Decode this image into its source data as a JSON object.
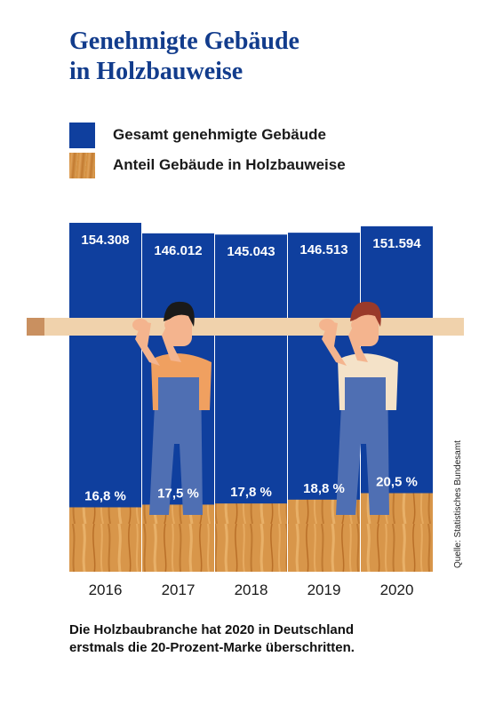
{
  "title": {
    "line1": "Genehmigte Gebäude",
    "line2": "in Holzbauweise"
  },
  "legend": {
    "total_label": "Gesamt genehmigte Gebäude",
    "wood_label": "Anteil Gebäude in Holzbauweise"
  },
  "chart_data": {
    "type": "bar",
    "categories": [
      "2016",
      "2017",
      "2018",
      "2019",
      "2020"
    ],
    "series": [
      {
        "name": "Gesamt genehmigte Gebäude",
        "values": [
          154308,
          146012,
          145043,
          146513,
          151594
        ],
        "labels": [
          "154.308",
          "146.012",
          "145.043",
          "146.513",
          "151.594"
        ]
      },
      {
        "name": "Anteil Gebäude in Holzbauweise",
        "values": [
          16.8,
          17.5,
          17.8,
          18.8,
          20.5
        ],
        "labels": [
          "16,8 %",
          "17,5 %",
          "17,8 %",
          "18,8 %",
          "20,5 %"
        ]
      }
    ],
    "colors": {
      "total": "#0f3f9e",
      "wood": "#d8964a",
      "label": "#ffffff"
    }
  },
  "source": "Quelle: Statistisches Bundesamt",
  "caption": {
    "line1": "Die Holzbaubranche hat 2020 in Deutschland",
    "line2": "erstmals die 20-Prozent-Marke überschritten."
  }
}
